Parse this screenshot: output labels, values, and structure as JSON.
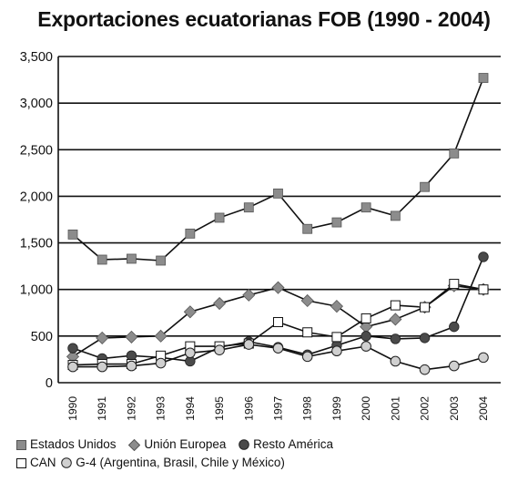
{
  "chart_data": {
    "type": "line",
    "title": "Exportaciones ecuatorianas FOB (1990 - 2004)",
    "xlabel": "",
    "ylabel": "",
    "ylim": [
      0,
      3500
    ],
    "yticks": [
      0,
      500,
      1000,
      1500,
      2000,
      2500,
      3000,
      3500
    ],
    "ytick_labels": [
      "0",
      "500",
      "1,000",
      "1,500",
      "2,000",
      "2,500",
      "3,000",
      "3,500"
    ],
    "categories": [
      "1990",
      "1991",
      "1992",
      "1993",
      "1994",
      "1995",
      "1996",
      "1997",
      "1998",
      "1999",
      "2000",
      "2001",
      "2002",
      "2003",
      "2004"
    ],
    "grid": "horizontal",
    "legend_placement": "bottom",
    "series": [
      {
        "name": "Estados Unidos",
        "marker": "square-gray",
        "values": [
          1590,
          1320,
          1330,
          1310,
          1600,
          1770,
          1880,
          2030,
          1650,
          1720,
          1880,
          1790,
          2100,
          2460,
          3270
        ]
      },
      {
        "name": "Unión Europea",
        "marker": "diamond-gray",
        "values": [
          280,
          480,
          490,
          500,
          760,
          850,
          940,
          1020,
          880,
          820,
          600,
          680,
          810,
          1040,
          1000
        ]
      },
      {
        "name": "Resto América",
        "marker": "circle-dark",
        "values": [
          370,
          260,
          290,
          270,
          230,
          380,
          440,
          380,
          300,
          400,
          500,
          470,
          480,
          600,
          1350
        ]
      },
      {
        "name": "CAN",
        "marker": "square-white",
        "values": [
          190,
          200,
          200,
          290,
          390,
          390,
          420,
          650,
          540,
          490,
          690,
          830,
          810,
          1060,
          1000
        ]
      },
      {
        "name": "G-4 (Argentina, Brasil, Chile y México)",
        "marker": "circle-light",
        "values": [
          170,
          170,
          180,
          210,
          320,
          350,
          410,
          370,
          280,
          340,
          390,
          230,
          140,
          180,
          270
        ]
      }
    ]
  },
  "legend": {
    "row1": [
      "Estados Unidos",
      "Unión Europea",
      "Resto América"
    ],
    "row2": [
      "CAN",
      "G-4 (Argentina, Brasil, Chile y México)"
    ]
  }
}
